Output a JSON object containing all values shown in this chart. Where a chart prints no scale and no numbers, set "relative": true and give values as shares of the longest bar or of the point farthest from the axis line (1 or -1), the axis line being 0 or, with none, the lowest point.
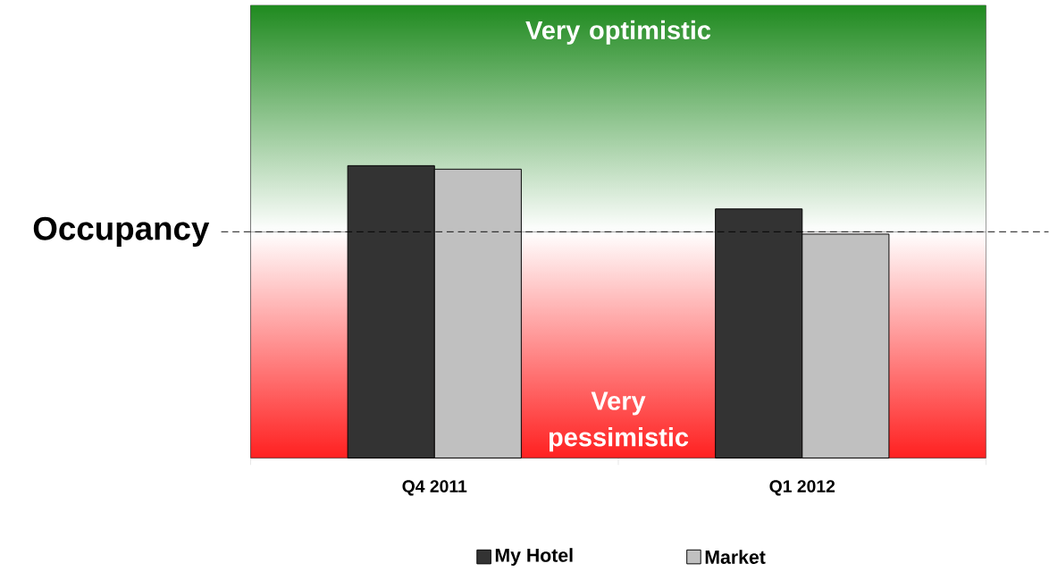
{
  "chart_data": {
    "type": "bar",
    "relative": true,
    "categories": [
      "Q4 2011",
      "Q1 2012"
    ],
    "series": [
      {
        "name": "My Hotel",
        "color": "#333333",
        "values": [
          1,
          0.852
        ]
      },
      {
        "name": "Market",
        "color": "#c0c0c0",
        "values": [
          0.988,
          0.766
        ]
      }
    ],
    "ref_lines": [
      {
        "axis": "y",
        "value": 0.774,
        "label": "Occupancy",
        "line_style": "dashed"
      }
    ],
    "bands": [
      {
        "axis": "y",
        "from": 0.774,
        "to": 1.549,
        "label": "Very optimistic",
        "color": "#1f8a1f"
      },
      {
        "axis": "y",
        "from": 0,
        "to": 0.774,
        "label": "Very pessimistic",
        "color": "#ff2020"
      }
    ],
    "legend": "bottom"
  }
}
